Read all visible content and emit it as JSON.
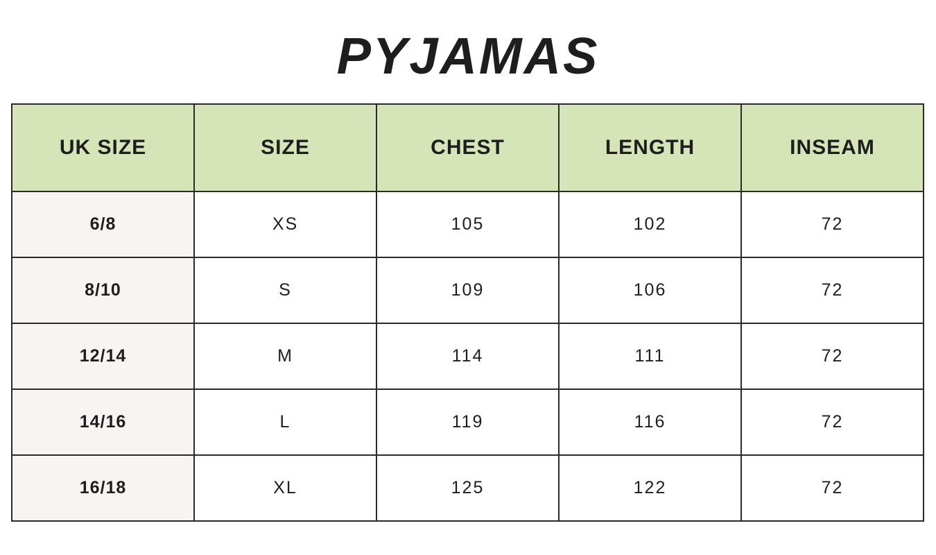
{
  "title": "PYJAMAS",
  "headers": [
    "UK SIZE",
    "SIZE",
    "CHEST",
    "LENGTH",
    "INSEAM"
  ],
  "rows": [
    [
      "6/8",
      "XS",
      "105",
      "102",
      "72"
    ],
    [
      "8/10",
      "S",
      "109",
      "106",
      "72"
    ],
    [
      "12/14",
      "M",
      "114",
      "111",
      "72"
    ],
    [
      "14/16",
      "L",
      "119",
      "116",
      "72"
    ],
    [
      "16/18",
      "XL",
      "125",
      "122",
      "72"
    ]
  ],
  "colors": {
    "header_bg": "#d5e5b8",
    "first_col_bg": "#f7f4f2"
  }
}
